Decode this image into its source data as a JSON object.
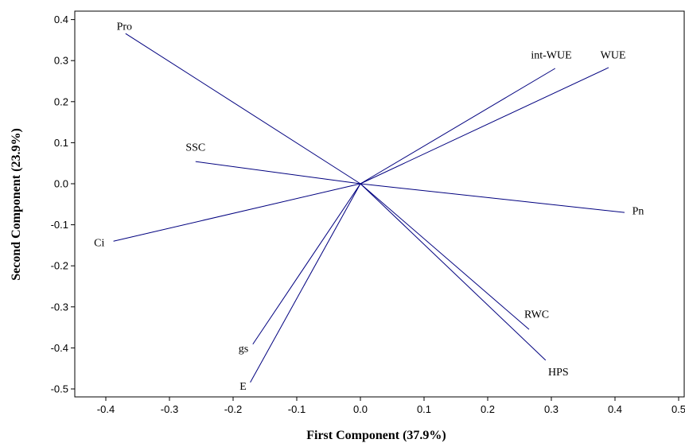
{
  "chart_data": {
    "type": "biplot",
    "xlabel": "First Component (37.9%)",
    "ylabel": "Second Component (23.9%)",
    "xlim": [
      -0.45,
      0.52
    ],
    "ylim": [
      -0.52,
      0.42
    ],
    "xticks": [
      -0.4,
      -0.3,
      -0.2,
      -0.1,
      0.0,
      0.1,
      0.2,
      0.3,
      0.4,
      0.5
    ],
    "xtick_labels": [
      "-0.4",
      "-0.3",
      "-0.2",
      "-0.1",
      "0.0",
      "0.1",
      "0.2",
      "0.3",
      "0.4",
      "0.5"
    ],
    "yticks": [
      0.4,
      0.3,
      0.2,
      0.1,
      0.0,
      -0.1,
      -0.2,
      -0.3,
      -0.4,
      -0.5
    ],
    "ytick_labels": [
      "0.4",
      "0.3",
      "0.2",
      "0.1",
      "0.0",
      "-0.1",
      "-0.2",
      "-0.3",
      "-0.4",
      "-0.5"
    ],
    "grid": false,
    "line_color": "#00007f",
    "vectors": [
      {
        "name": "Pro",
        "x": -0.369,
        "y": 0.366,
        "anchor": "right",
        "lx": -0.383,
        "ly": 0.385
      },
      {
        "name": "int-WUE",
        "x": 0.306,
        "y": 0.281,
        "anchor": "middle",
        "lx": 0.3,
        "ly": 0.315
      },
      {
        "name": "WUE",
        "x": 0.39,
        "y": 0.283,
        "anchor": "middle",
        "lx": 0.397,
        "ly": 0.315
      },
      {
        "name": "SSC",
        "x": -0.259,
        "y": 0.054,
        "anchor": "middle",
        "lx": -0.259,
        "ly": 0.09
      },
      {
        "name": "Pn",
        "x": 0.415,
        "y": -0.07,
        "anchor": "start",
        "lx": 0.427,
        "ly": -0.065
      },
      {
        "name": "Ci",
        "x": -0.388,
        "y": -0.14,
        "anchor": "end",
        "lx": -0.402,
        "ly": -0.142
      },
      {
        "name": "RWC",
        "x": 0.265,
        "y": -0.355,
        "anchor": "middle",
        "lx": 0.277,
        "ly": -0.317
      },
      {
        "name": "HPS",
        "x": 0.291,
        "y": -0.43,
        "anchor": "middle",
        "lx": 0.311,
        "ly": -0.457
      },
      {
        "name": "gs",
        "x": -0.169,
        "y": -0.391,
        "anchor": "end",
        "lx": -0.176,
        "ly": -0.4
      },
      {
        "name": "E",
        "x": -0.173,
        "y": -0.484,
        "anchor": "end",
        "lx": -0.179,
        "ly": -0.492
      }
    ]
  }
}
